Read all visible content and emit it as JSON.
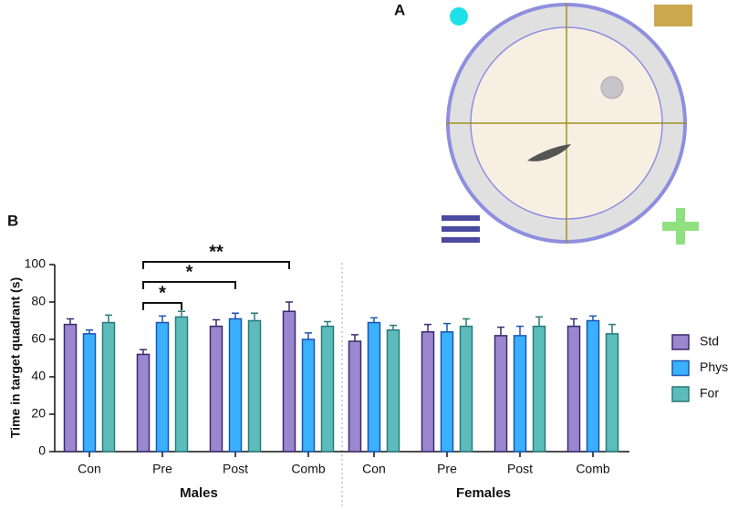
{
  "chart_data": {
    "type": "bar",
    "panel_labels": [
      "A",
      "B"
    ],
    "ylabel": "Time in target quadrant (s)",
    "categories": [
      "Con",
      "Pre",
      "Post",
      "Comb",
      "Con",
      "Pre",
      "Post",
      "Comb"
    ],
    "groups": [
      "Males",
      "Females"
    ],
    "series": [
      {
        "name": "Std",
        "color": "#9b86d0",
        "edge": "#3d2a6e",
        "values": [
          68,
          52,
          67,
          75,
          59,
          64,
          62,
          67
        ],
        "errors": [
          3,
          2.5,
          3.5,
          5,
          3.5,
          4,
          4.5,
          4
        ]
      },
      {
        "name": "Phys",
        "color": "#3ab0ff",
        "edge": "#1a56b0",
        "values": [
          63,
          69,
          71,
          60,
          69,
          64,
          62,
          70
        ],
        "errors": [
          2,
          3.5,
          3,
          3.5,
          2.5,
          4.5,
          5,
          2.5
        ]
      },
      {
        "name": "For",
        "color": "#5cbcbc",
        "edge": "#2a7a7a",
        "values": [
          69,
          72,
          70,
          67,
          65,
          67,
          67,
          63
        ],
        "errors": [
          4,
          3,
          4,
          2.5,
          2.5,
          4,
          5,
          5
        ]
      }
    ],
    "annotations": [
      "*",
      "*",
      "**"
    ],
    "ylim": [
      0,
      100
    ],
    "yticks": [
      0,
      20,
      40,
      60,
      80,
      100
    ]
  }
}
